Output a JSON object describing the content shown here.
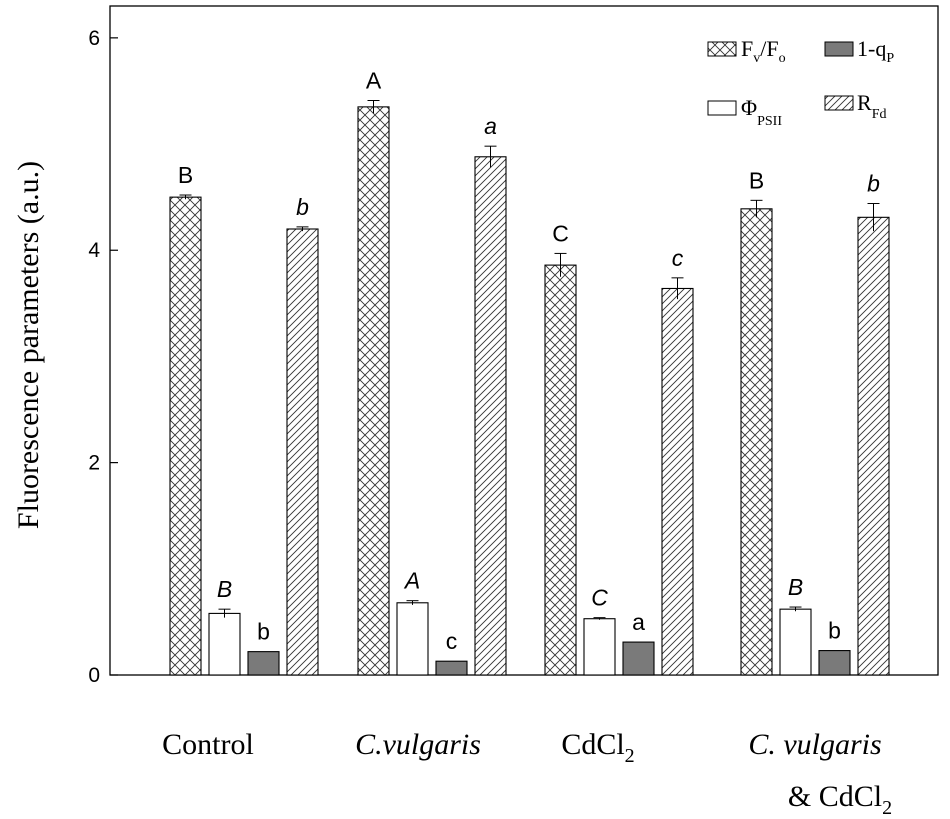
{
  "chart_data": {
    "type": "bar",
    "title": "",
    "xlabel": "",
    "ylabel": "Fluorescence parameters (a.u.)",
    "ylim": [
      0,
      6.3
    ],
    "yticks": [
      "0",
      "2",
      "4",
      "6"
    ],
    "categories": [
      {
        "line1": "Control",
        "line1_italic": false,
        "line2": ""
      },
      {
        "line1": "C.vulgaris",
        "line1_italic": true,
        "line2": ""
      },
      {
        "line1": "CdCl",
        "sub": "2",
        "line1_italic": false,
        "line2": ""
      },
      {
        "line1": "C. vulgaris",
        "line1_italic": true,
        "line2": "& CdCl",
        "line2_sub": "2"
      }
    ],
    "series": [
      {
        "name": "Fv/Fo",
        "legend": {
          "main": "F",
          "sub1": "v",
          "mid": "/F",
          "sub2": "o"
        },
        "pattern": "crosshatch",
        "values": [
          4.5,
          5.35,
          3.86,
          4.39
        ],
        "errors": [
          0.02,
          0.06,
          0.11,
          0.08
        ],
        "letters": [
          "B",
          "A",
          "C",
          "B"
        ],
        "letter_italic": false
      },
      {
        "name": "ΦPSII",
        "legend": {
          "main": "Φ",
          "sub1": "PSII"
        },
        "pattern": "white",
        "values": [
          0.58,
          0.68,
          0.53,
          0.62
        ],
        "errors": [
          0.04,
          0.02,
          0.01,
          0.02
        ],
        "letters": [
          "B",
          "A",
          "C",
          "B"
        ],
        "letter_italic": true
      },
      {
        "name": "1-qP",
        "legend": {
          "main": "1-q",
          "sub1": "P"
        },
        "pattern": "dark",
        "values": [
          0.22,
          0.13,
          0.31,
          0.23
        ],
        "errors": [
          0,
          0,
          0,
          0
        ],
        "letters": [
          "b",
          "c",
          "a",
          "b"
        ],
        "letter_italic": false
      },
      {
        "name": "RFd",
        "legend": {
          "main": "R",
          "sub1": "Fd"
        },
        "pattern": "diagonal",
        "values": [
          4.2,
          4.88,
          3.64,
          4.31
        ],
        "errors": [
          0.02,
          0.1,
          0.1,
          0.13
        ],
        "letters": [
          "b",
          "a",
          "c",
          "b"
        ],
        "letter_italic": true
      }
    ],
    "legend_position": "top-right",
    "colors": {
      "axis": "#000000",
      "dark_bar": "#7a7a7a",
      "white_bar": "#ffffff",
      "hatch": "#333333"
    }
  }
}
